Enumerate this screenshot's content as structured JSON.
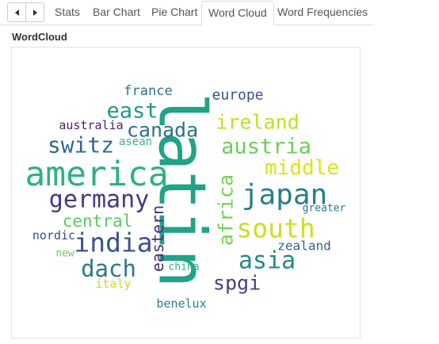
{
  "tabs": [
    {
      "label": "Stats",
      "active": false
    },
    {
      "label": "Bar Chart",
      "active": false
    },
    {
      "label": "Pie Chart",
      "active": false
    },
    {
      "label": "Word Cloud",
      "active": true
    },
    {
      "label": "Word Frequencies",
      "active": false
    }
  ],
  "scroll_icons": [
    "triangle-left-icon",
    "triangle-right-icon"
  ],
  "section": {
    "title": "WordCloud"
  },
  "words": [
    {
      "text": "latin",
      "color": "#20a386"
    },
    {
      "text": "america",
      "color": "#2db27d"
    },
    {
      "text": "japan",
      "color": "#287d8e"
    },
    {
      "text": "germany",
      "color": "#443983"
    },
    {
      "text": "india",
      "color": "#3b528b"
    },
    {
      "text": "switz",
      "color": "#31688e"
    },
    {
      "text": "east",
      "color": "#1f9a8a"
    },
    {
      "text": "canada",
      "color": "#2d708e"
    },
    {
      "text": "ireland",
      "color": "#c2df23"
    },
    {
      "text": "austria",
      "color": "#6ccd5a"
    },
    {
      "text": "middle",
      "color": "#dfe318"
    },
    {
      "text": "south",
      "color": "#cae11f"
    },
    {
      "text": "asia",
      "color": "#238a8d"
    },
    {
      "text": "dach",
      "color": "#2a788e"
    },
    {
      "text": "africa",
      "color": "#7ad151"
    },
    {
      "text": "eastern",
      "color": "#472d7b"
    },
    {
      "text": "spgi",
      "color": "#433e85"
    },
    {
      "text": "central",
      "color": "#5ec962"
    },
    {
      "text": "europe",
      "color": "#3b528b"
    },
    {
      "text": "france",
      "color": "#2c728e"
    },
    {
      "text": "australia",
      "color": "#481f70"
    },
    {
      "text": "asean",
      "color": "#35b779"
    },
    {
      "text": "nordic",
      "color": "#3e4989"
    },
    {
      "text": "new",
      "color": "#6ece58"
    },
    {
      "text": "zealand",
      "color": "#33638d"
    },
    {
      "text": "greater",
      "color": "#2a788e"
    },
    {
      "text": "china",
      "color": "#2eb37c"
    },
    {
      "text": "italy",
      "color": "#bddf26"
    },
    {
      "text": "benelux",
      "color": "#297b8e"
    }
  ]
}
